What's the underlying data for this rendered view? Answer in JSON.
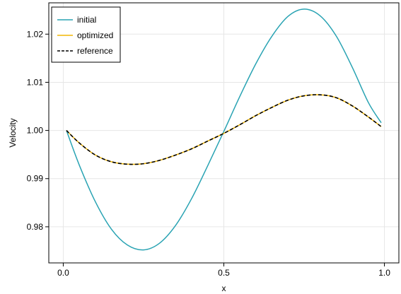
{
  "chart_data": {
    "type": "line",
    "title": "",
    "xlabel": "x",
    "ylabel": "Velocity",
    "xlim": [
      -0.045,
      1.045
    ],
    "ylim": [
      0.9725,
      1.0265
    ],
    "xticks": [
      0.0,
      0.5,
      1.0
    ],
    "xtick_labels": [
      "0.0",
      "0.5",
      "1.0"
    ],
    "yticks": [
      0.98,
      0.99,
      1.0,
      1.01,
      1.02
    ],
    "ytick_labels": [
      "0.98",
      "0.99",
      "1.00",
      "1.01",
      "1.02"
    ],
    "grid": true,
    "legend_position": "top-left",
    "series": [
      {
        "name": "initial",
        "color": "#29a3b3",
        "style": "solid",
        "x": [
          0.01,
          0.05,
          0.1,
          0.15,
          0.2,
          0.25,
          0.3,
          0.35,
          0.4,
          0.45,
          0.5,
          0.55,
          0.6,
          0.65,
          0.7,
          0.75,
          0.8,
          0.85,
          0.9,
          0.95,
          0.99
        ],
        "y": [
          1.0,
          0.9928,
          0.9852,
          0.9795,
          0.9762,
          0.9752,
          0.9766,
          0.9803,
          0.9859,
          0.9927,
          0.9998,
          1.0071,
          1.0139,
          1.0196,
          1.0237,
          1.0252,
          1.0238,
          1.0196,
          1.0131,
          1.0058,
          1.0016
        ]
      },
      {
        "name": "optimized",
        "color": "#f2b705",
        "style": "solid",
        "x": [
          0.01,
          0.05,
          0.1,
          0.15,
          0.2,
          0.25,
          0.3,
          0.35,
          0.4,
          0.45,
          0.5,
          0.55,
          0.6,
          0.65,
          0.7,
          0.75,
          0.8,
          0.85,
          0.9,
          0.95,
          0.99
        ],
        "y": [
          1.0,
          0.9974,
          0.9949,
          0.9935,
          0.993,
          0.9931,
          0.9938,
          0.9949,
          0.9962,
          0.9978,
          0.9994,
          1.0012,
          1.0031,
          1.0048,
          1.0063,
          1.0072,
          1.0074,
          1.0068,
          1.0051,
          1.0028,
          1.0008
        ]
      },
      {
        "name": "reference",
        "color": "#000000",
        "style": "dashed",
        "x": [
          0.01,
          0.05,
          0.1,
          0.15,
          0.2,
          0.25,
          0.3,
          0.35,
          0.4,
          0.45,
          0.5,
          0.55,
          0.6,
          0.65,
          0.7,
          0.75,
          0.8,
          0.85,
          0.9,
          0.95,
          0.99
        ],
        "y": [
          1.0,
          0.9974,
          0.9949,
          0.9935,
          0.993,
          0.9931,
          0.9938,
          0.9949,
          0.9962,
          0.9978,
          0.9994,
          1.0012,
          1.0031,
          1.0048,
          1.0063,
          1.0072,
          1.0074,
          1.0068,
          1.0051,
          1.0028,
          1.0008
        ]
      }
    ]
  }
}
